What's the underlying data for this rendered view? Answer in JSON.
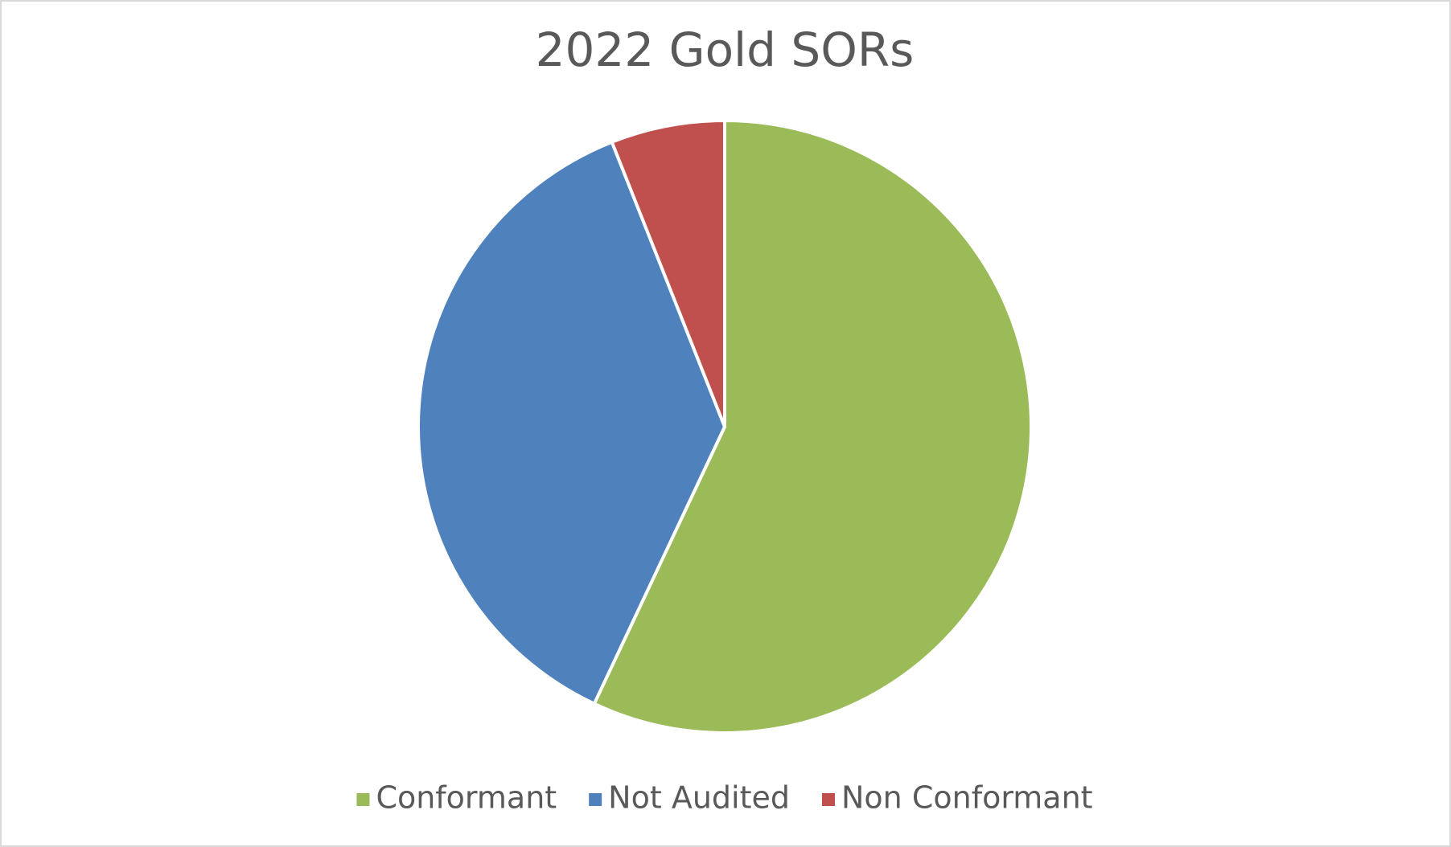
{
  "chart_data": {
    "type": "pie",
    "title": "2022 Gold SORs",
    "categories": [
      "Conformant",
      "Not Audited",
      "Non Conformant"
    ],
    "values": [
      57,
      37,
      6
    ],
    "colors": [
      "#9bbb59",
      "#4f81bd",
      "#c0504d"
    ],
    "legend": "bottom"
  }
}
